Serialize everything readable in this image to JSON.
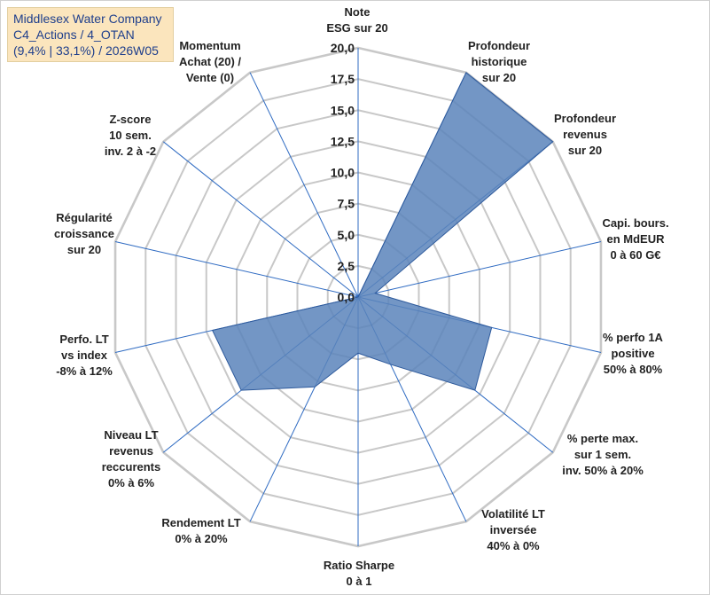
{
  "title": {
    "line1": "Middlesex Water Company",
    "line2": "C4_Actions / 4_OTAN",
    "line3": "(9,4% | 33,1%) / 2026W05"
  },
  "chart_data": {
    "type": "radar",
    "title": "Middlesex Water Company C4_Actions / 4_OTAN (9,4% | 33,1%) / 2026W05",
    "r_min": 0,
    "r_max": 20,
    "r_step": 2.5,
    "tick_labels": [
      "0,0",
      "2,5",
      "5,0",
      "7,5",
      "10,0",
      "12,5",
      "15,0",
      "17,5",
      "20,0"
    ],
    "axes": [
      {
        "label": [
          "Note",
          "ESG sur 20"
        ]
      },
      {
        "label": [
          "Profondeur",
          "historique",
          "sur 20"
        ]
      },
      {
        "label": [
          "Profondeur",
          "revenus",
          "sur 20"
        ]
      },
      {
        "label": [
          "Capi. bours.",
          "en MdEUR",
          "0 à 60 G€"
        ]
      },
      {
        "label": [
          "% perfo 1A",
          "positive",
          "50% à 80%"
        ]
      },
      {
        "label": [
          "% perte max.",
          "sur 1 sem.",
          "inv. 50% à 20%"
        ]
      },
      {
        "label": [
          "Volatilité LT",
          "inversée",
          "40% à 0%"
        ]
      },
      {
        "label": [
          "Ratio Sharpe",
          "0 à 1"
        ]
      },
      {
        "label": [
          "Rendement LT",
          "0% à 20%"
        ]
      },
      {
        "label": [
          "Niveau LT",
          "revenus",
          "reccurents",
          "0% à 6%"
        ]
      },
      {
        "label": [
          "Perfo. LT",
          "vs index",
          "-8% à 12%"
        ]
      },
      {
        "label": [
          "Régularité",
          "croissance",
          "sur 20"
        ]
      },
      {
        "label": [
          "Z-score",
          "10 sem.",
          "inv. 2 à -2"
        ]
      },
      {
        "label": [
          "Momentum",
          "Achat (20) /",
          "Vente (0)"
        ]
      }
    ],
    "series": [
      {
        "name": "Middlesex Water Company",
        "values": [
          0,
          20,
          20,
          1.4,
          11,
          12,
          6,
          4.5,
          8,
          12,
          12,
          0,
          0,
          0
        ]
      }
    ],
    "colors": {
      "fill": "#5b84bb",
      "stroke": "#2e5a9c",
      "grid": "#c8c8c8",
      "spoke": "#2f6bc2"
    }
  }
}
